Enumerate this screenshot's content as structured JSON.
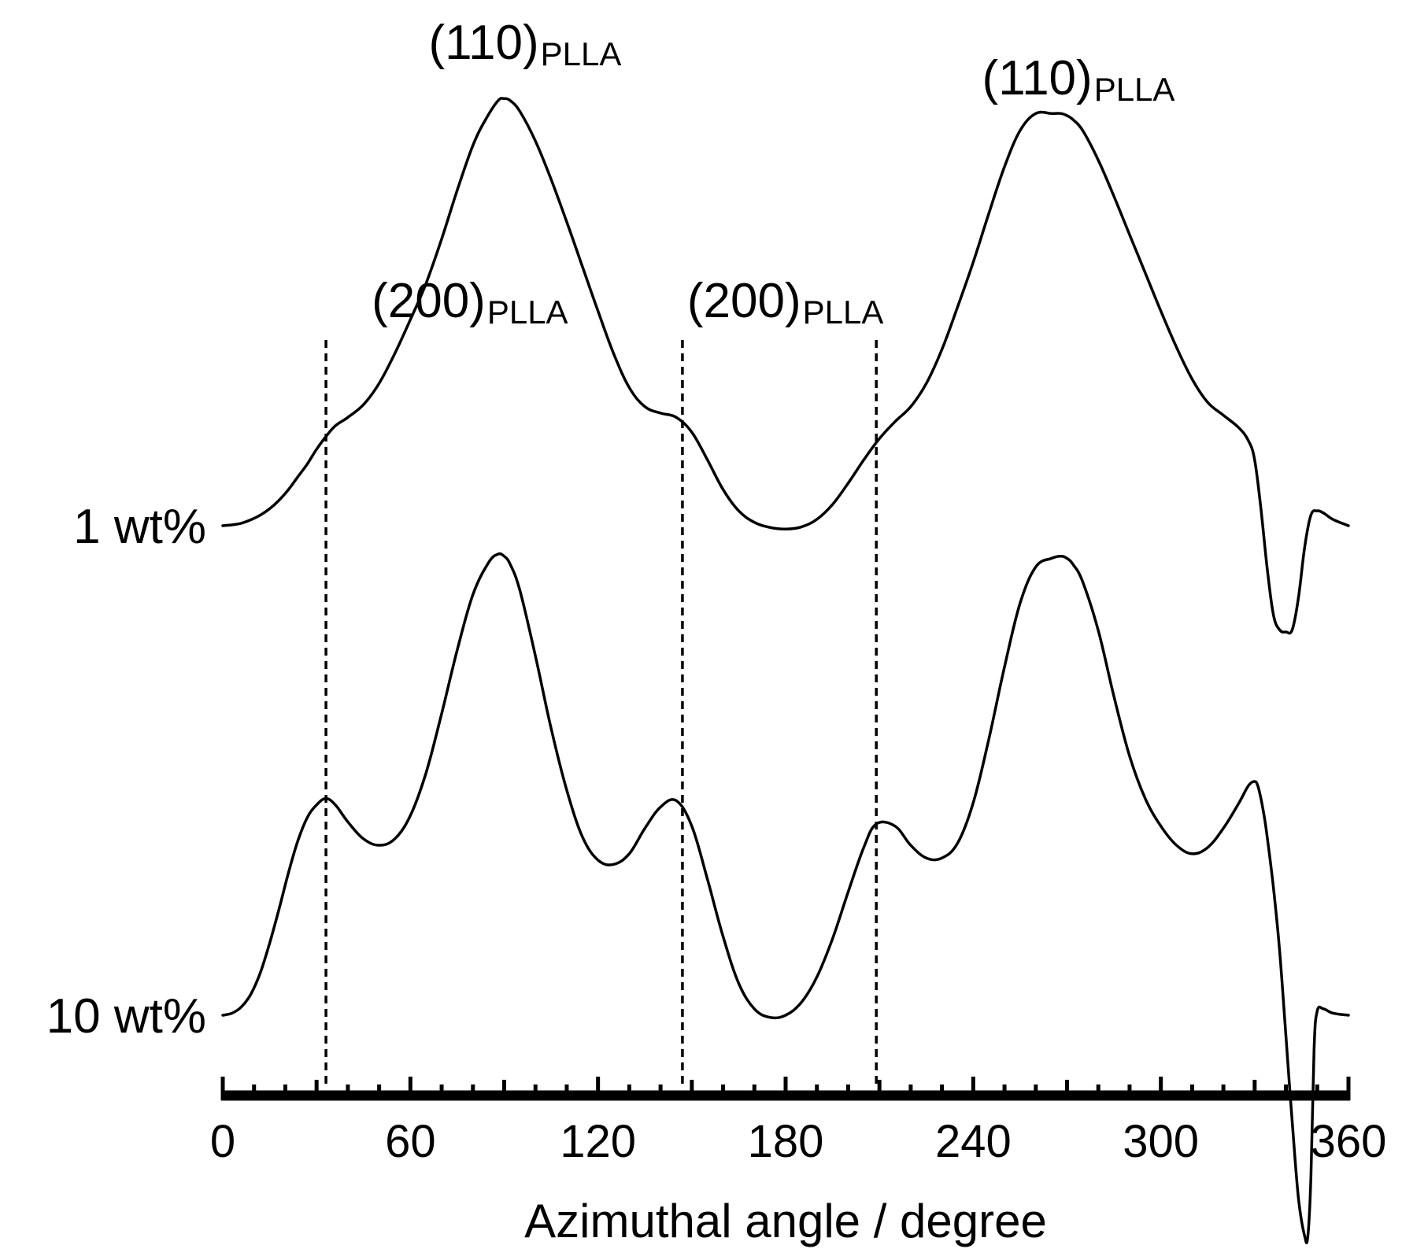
{
  "chart_data": {
    "type": "line",
    "xlabel": "Azimuthal angle / degree",
    "ylabel": "",
    "xlim": [
      0,
      360
    ],
    "x_ticks": [
      "0",
      "60",
      "120",
      "180",
      "240",
      "300",
      "360"
    ],
    "grid": false,
    "y_axis_shown": false,
    "reference_lines_x": [
      33,
      147,
      209
    ],
    "annotations": [
      {
        "id": "ann-110-left",
        "main": "(110)",
        "sub": "PLLA",
        "x": 91
      },
      {
        "id": "ann-110-right",
        "main": "(110)",
        "sub": "PLLA",
        "x": 268
      },
      {
        "id": "ann-200-left",
        "main": "(200)",
        "sub": "PLLA",
        "x": 33
      },
      {
        "id": "ann-200-mid",
        "main": "(200)",
        "sub": "PLLA",
        "x": 147
      }
    ],
    "series": [
      {
        "name": "1 wt%",
        "x": [
          0,
          3,
          6,
          9,
          12,
          15,
          18,
          21,
          24,
          27,
          30,
          33,
          36,
          40,
          45,
          50,
          55,
          60,
          65,
          70,
          75,
          80,
          84,
          88,
          90,
          92,
          95,
          100,
          105,
          110,
          115,
          120,
          125,
          130,
          135,
          140,
          145,
          150,
          155,
          160,
          165,
          170,
          175,
          180,
          185,
          190,
          195,
          200,
          205,
          210,
          215,
          220,
          225,
          230,
          235,
          240,
          245,
          250,
          255,
          260,
          265,
          268,
          270,
          272,
          275,
          280,
          285,
          290,
          295,
          300,
          305,
          310,
          315,
          320,
          325,
          328,
          330,
          332,
          334,
          336,
          338,
          340,
          342,
          344,
          346,
          348,
          350,
          352,
          355,
          360
        ],
        "values": [
          0.0,
          0.2,
          0.6,
          1.4,
          2.5,
          4.0,
          6.0,
          8.5,
          11.5,
          14.5,
          18.0,
          21.0,
          23.5,
          25.5,
          28.5,
          33.5,
          40.5,
          48.5,
          57.0,
          67.5,
          79.0,
          89.5,
          95.5,
          100.0,
          100.5,
          100.0,
          97.5,
          90.5,
          81.5,
          71.5,
          61.0,
          50.5,
          40.5,
          32.5,
          28.0,
          26.5,
          25.5,
          22.0,
          15.5,
          8.5,
          3.5,
          0.8,
          -0.4,
          -0.8,
          -0.3,
          1.5,
          5.0,
          10.0,
          15.5,
          20.5,
          24.5,
          28.0,
          33.5,
          41.5,
          51.5,
          62.0,
          73.5,
          84.5,
          93.0,
          97.0,
          97.0,
          97.0,
          96.5,
          95.5,
          93.0,
          86.0,
          77.5,
          68.5,
          59.5,
          50.5,
          42.0,
          34.5,
          29.0,
          26.0,
          23.0,
          20.0,
          15.5,
          4.0,
          -10.0,
          -21.0,
          -24.5,
          -25.0,
          -24.5,
          -17.0,
          -5.0,
          2.5,
          3.5,
          3.0,
          1.5,
          0.0
        ]
      },
      {
        "name": "10 wt%",
        "x": [
          0,
          3,
          6,
          9,
          12,
          15,
          18,
          21,
          24,
          27,
          30,
          33,
          36,
          40,
          45,
          50,
          55,
          60,
          65,
          70,
          75,
          80,
          85,
          88,
          90,
          92,
          95,
          100,
          105,
          110,
          115,
          120,
          125,
          130,
          135,
          140,
          145,
          150,
          155,
          160,
          165,
          170,
          175,
          180,
          185,
          190,
          195,
          200,
          205,
          209,
          215,
          220,
          225,
          230,
          235,
          240,
          245,
          250,
          255,
          260,
          265,
          268,
          270,
          272,
          275,
          280,
          285,
          290,
          295,
          300,
          305,
          310,
          315,
          320,
          325,
          328,
          330,
          331,
          332,
          333,
          334,
          336,
          338,
          340,
          342,
          344,
          346,
          347,
          348,
          349,
          350,
          352,
          355,
          360
        ],
        "values": [
          0.0,
          0.5,
          2.0,
          5.0,
          10.0,
          17.0,
          25.0,
          33.5,
          41.0,
          46.5,
          49.5,
          51.0,
          49.5,
          45.5,
          41.5,
          40.0,
          41.5,
          47.0,
          57.0,
          71.0,
          86.0,
          99.0,
          106.5,
          108.5,
          108.0,
          106.0,
          100.0,
          84.5,
          67.5,
          53.0,
          42.0,
          36.5,
          35.5,
          38.0,
          44.0,
          49.0,
          50.5,
          44.5,
          32.0,
          18.5,
          7.5,
          1.5,
          -0.5,
          0.0,
          3.0,
          9.0,
          18.0,
          29.0,
          39.5,
          45.0,
          44.5,
          40.0,
          37.0,
          37.0,
          40.5,
          50.0,
          65.0,
          82.0,
          97.0,
          105.5,
          107.5,
          108.0,
          107.5,
          106.0,
          102.0,
          90.5,
          75.0,
          61.0,
          51.0,
          44.5,
          40.0,
          38.0,
          39.5,
          44.0,
          50.0,
          54.0,
          55.0,
          54.0,
          51.0,
          47.0,
          42.0,
          30.0,
          15.0,
          -5.0,
          -25.0,
          -43.0,
          -52.0,
          -52.0,
          -38.0,
          -8.0,
          1.0,
          1.5,
          0.5,
          0.0
        ]
      }
    ]
  }
}
